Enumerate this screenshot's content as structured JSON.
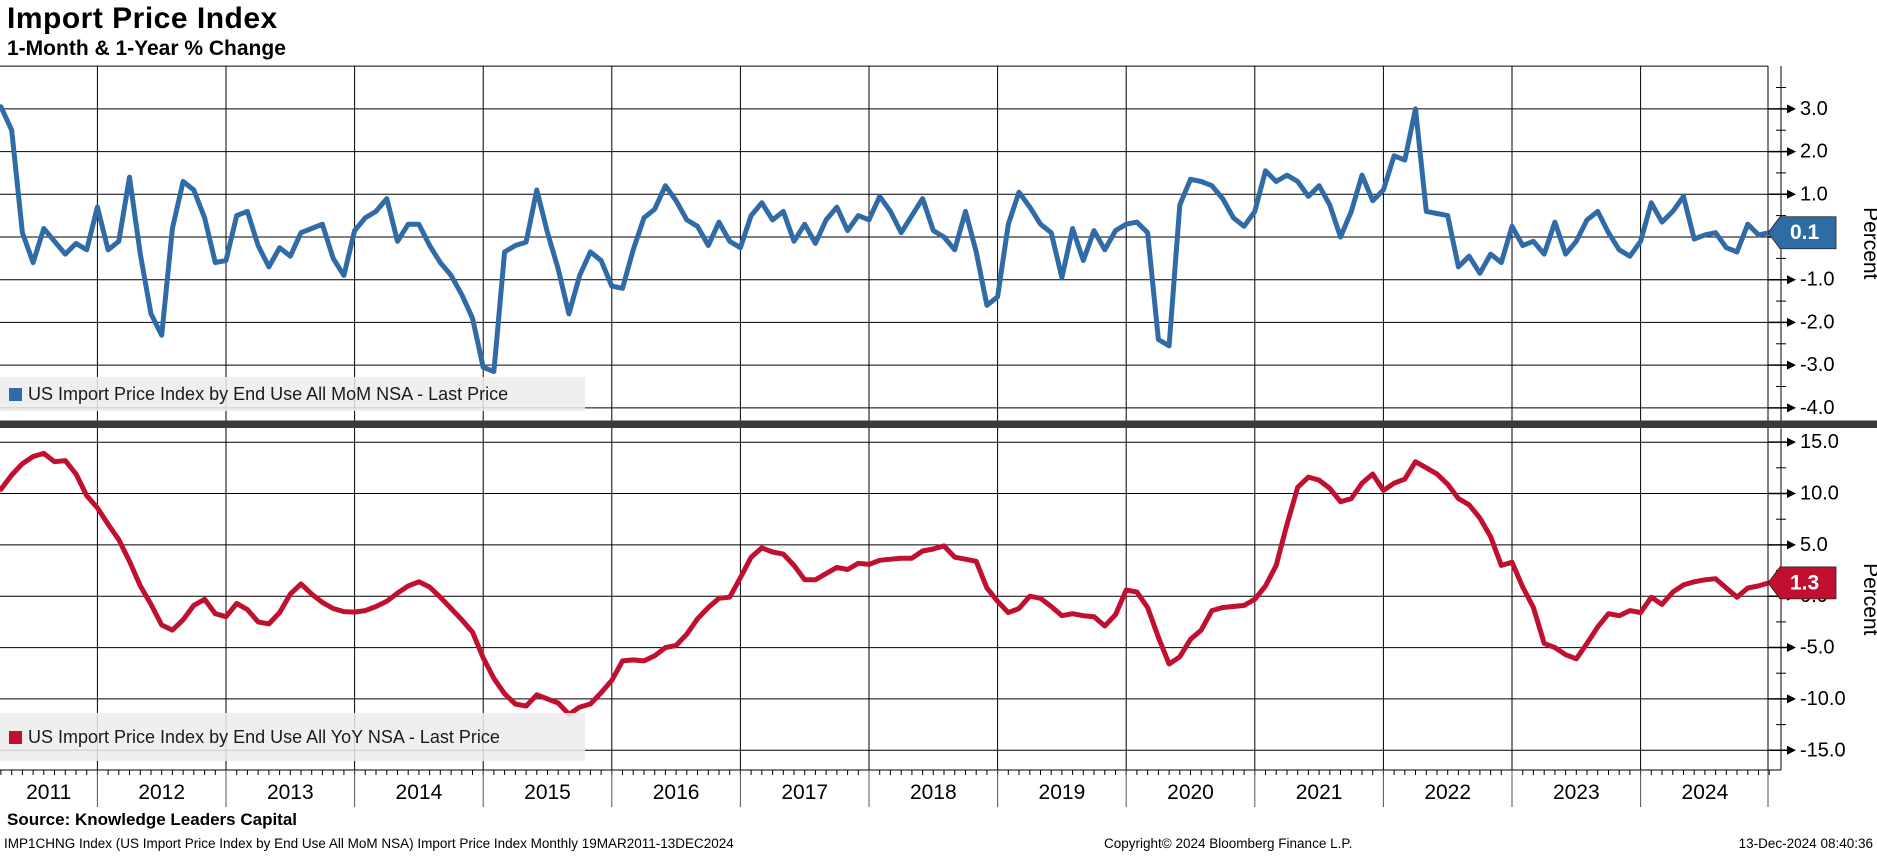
{
  "title": "Import Price Index",
  "subtitle": "1-Month & 1-Year % Change",
  "source_line": "Source: Knowledge Leaders Capital",
  "footer": {
    "left": "IMP1CHNG Index (US Import Price Index by End Use All MoM NSA) Import Price Index  Monthly 19MAR2011-13DEC2024",
    "center": "Copyright© 2024 Bloomberg Finance L.P.",
    "right": "13-Dec-2024 08:40:36"
  },
  "y_axis_title": "Percent",
  "colors": {
    "mom_line": "#306ba8",
    "mom_badge": "#2e6da4",
    "yoy_line": "#c00f2f",
    "yoy_badge": "#c00f2f",
    "grid": "#000000",
    "separator_bar": "#3a3a3a",
    "legend_bg": "#eeeeee",
    "badge_text": "#ffffff"
  },
  "legends": [
    "US Import Price Index by End Use All MoM NSA - Last Price",
    "US Import Price Index by End Use All YoY NSA - Last Price"
  ],
  "x_axis": {
    "year_labels": [
      "2011",
      "2012",
      "2013",
      "2014",
      "2015",
      "2016",
      "2017",
      "2018",
      "2019",
      "2020",
      "2021",
      "2022",
      "2023",
      "2024"
    ]
  },
  "chart_data": [
    {
      "type": "line",
      "name": "US Import Price Index by End Use All MoM NSA - Last Price",
      "frequency": "monthly",
      "x_start": "2011-03",
      "x_end": "2024-12",
      "ylim": [
        -4.0,
        3.0
      ],
      "yticks": {
        "values": [
          3,
          2,
          1,
          0,
          -1,
          -2,
          -3,
          -4
        ],
        "labels": [
          "3.0",
          "2.0",
          "1.0",
          "0.0",
          "-1.0",
          "-2.0",
          "-3.0",
          "-4.0"
        ]
      },
      "ylabel": "Percent",
      "last_price": "0.1",
      "values": [
        3.05,
        2.5,
        0.1,
        -0.6,
        0.2,
        -0.1,
        -0.4,
        -0.15,
        -0.3,
        0.7,
        -0.3,
        -0.1,
        1.4,
        -0.4,
        -1.8,
        -2.3,
        0.2,
        1.3,
        1.1,
        0.45,
        -0.6,
        -0.55,
        0.5,
        0.6,
        -0.2,
        -0.7,
        -0.25,
        -0.45,
        0.1,
        0.2,
        0.3,
        -0.5,
        -0.9,
        0.15,
        0.45,
        0.6,
        0.9,
        -0.1,
        0.3,
        0.3,
        -0.2,
        -0.6,
        -0.9,
        -1.35,
        -1.9,
        -3.05,
        -3.15,
        -0.35,
        -0.2,
        -0.12,
        1.1,
        0.1,
        -0.75,
        -1.8,
        -0.9,
        -0.35,
        -0.55,
        -1.15,
        -1.2,
        -0.3,
        0.45,
        0.65,
        1.2,
        0.85,
        0.4,
        0.25,
        -0.2,
        0.35,
        -0.1,
        -0.25,
        0.5,
        0.8,
        0.4,
        0.6,
        -0.1,
        0.3,
        -0.15,
        0.4,
        0.7,
        0.15,
        0.5,
        0.4,
        0.95,
        0.6,
        0.1,
        0.5,
        0.9,
        0.15,
        0.0,
        -0.3,
        0.6,
        -0.35,
        -1.6,
        -1.4,
        0.3,
        1.05,
        0.7,
        0.3,
        0.1,
        -0.95,
        0.2,
        -0.55,
        0.15,
        -0.3,
        0.15,
        0.3,
        0.35,
        0.1,
        -2.4,
        -2.55,
        0.75,
        1.35,
        1.3,
        1.2,
        0.9,
        0.45,
        0.25,
        0.6,
        1.55,
        1.3,
        1.45,
        1.3,
        0.95,
        1.2,
        0.75,
        0.0,
        0.6,
        1.45,
        0.85,
        1.1,
        1.9,
        1.8,
        3.0,
        0.6,
        0.55,
        0.5,
        -0.7,
        -0.45,
        -0.85,
        -0.4,
        -0.6,
        0.25,
        -0.2,
        -0.1,
        -0.4,
        0.35,
        -0.4,
        -0.1,
        0.4,
        0.6,
        0.1,
        -0.3,
        -0.45,
        -0.1,
        0.8,
        0.35,
        0.6,
        0.95,
        -0.05,
        0.05,
        0.1,
        -0.25,
        -0.35,
        0.3,
        0.05,
        0.1
      ]
    },
    {
      "type": "line",
      "name": "US Import Price Index by End Use All YoY NSA - Last Price",
      "frequency": "monthly",
      "x_start": "2011-03",
      "x_end": "2024-12",
      "ylim": [
        -15.0,
        15.0
      ],
      "yticks": {
        "values": [
          15,
          10,
          5,
          0,
          -5,
          -10,
          -15
        ],
        "labels": [
          "15.0",
          "10.0",
          "5.0",
          "0.0",
          "-5.0",
          "-10.0",
          "-15.0"
        ]
      },
      "ylabel": "Percent",
      "last_price": "1.3",
      "values": [
        10.4,
        11.8,
        12.9,
        13.6,
        13.9,
        13.1,
        13.2,
        11.9,
        9.8,
        8.6,
        7.0,
        5.5,
        3.4,
        1.0,
        -0.8,
        -2.8,
        -3.3,
        -2.3,
        -0.9,
        -0.3,
        -1.7,
        -2.0,
        -0.7,
        -1.3,
        -2.5,
        -2.7,
        -1.6,
        0.2,
        1.2,
        0.2,
        -0.6,
        -1.2,
        -1.5,
        -1.55,
        -1.4,
        -1.0,
        -0.5,
        0.3,
        1.0,
        1.4,
        0.9,
        -0.1,
        -1.2,
        -2.3,
        -3.5,
        -6.0,
        -8.0,
        -9.5,
        -10.5,
        -10.7,
        -9.6,
        -10.0,
        -10.4,
        -11.5,
        -10.8,
        -10.5,
        -9.4,
        -8.2,
        -6.3,
        -6.2,
        -6.3,
        -5.8,
        -5.0,
        -4.8,
        -3.7,
        -2.2,
        -1.1,
        -0.2,
        -0.1,
        1.8,
        3.8,
        4.7,
        4.3,
        4.1,
        3.0,
        1.6,
        1.6,
        2.2,
        2.8,
        2.6,
        3.2,
        3.1,
        3.5,
        3.6,
        3.7,
        3.7,
        4.4,
        4.6,
        4.9,
        3.8,
        3.6,
        3.4,
        0.8,
        -0.5,
        -1.6,
        -1.2,
        0.0,
        -0.2,
        -1.0,
        -1.9,
        -1.7,
        -1.9,
        -2.0,
        -2.9,
        -1.8,
        0.6,
        0.4,
        -1.1,
        -4.0,
        -6.6,
        -5.9,
        -4.2,
        -3.3,
        -1.4,
        -1.1,
        -1.0,
        -0.9,
        -0.3,
        1.0,
        3.0,
        7.0,
        10.6,
        11.6,
        11.3,
        10.5,
        9.2,
        9.5,
        11.0,
        11.9,
        10.3,
        11.0,
        11.4,
        13.1,
        12.5,
        11.9,
        10.9,
        9.5,
        8.9,
        7.6,
        5.8,
        3.0,
        3.3,
        0.9,
        -1.1,
        -4.6,
        -5.0,
        -5.7,
        -6.1,
        -4.6,
        -3.0,
        -1.7,
        -1.9,
        -1.4,
        -1.6,
        -0.1,
        -0.8,
        0.4,
        1.1,
        1.4,
        1.6,
        1.7,
        0.8,
        -0.1,
        0.8,
        1.0,
        1.3
      ]
    }
  ]
}
